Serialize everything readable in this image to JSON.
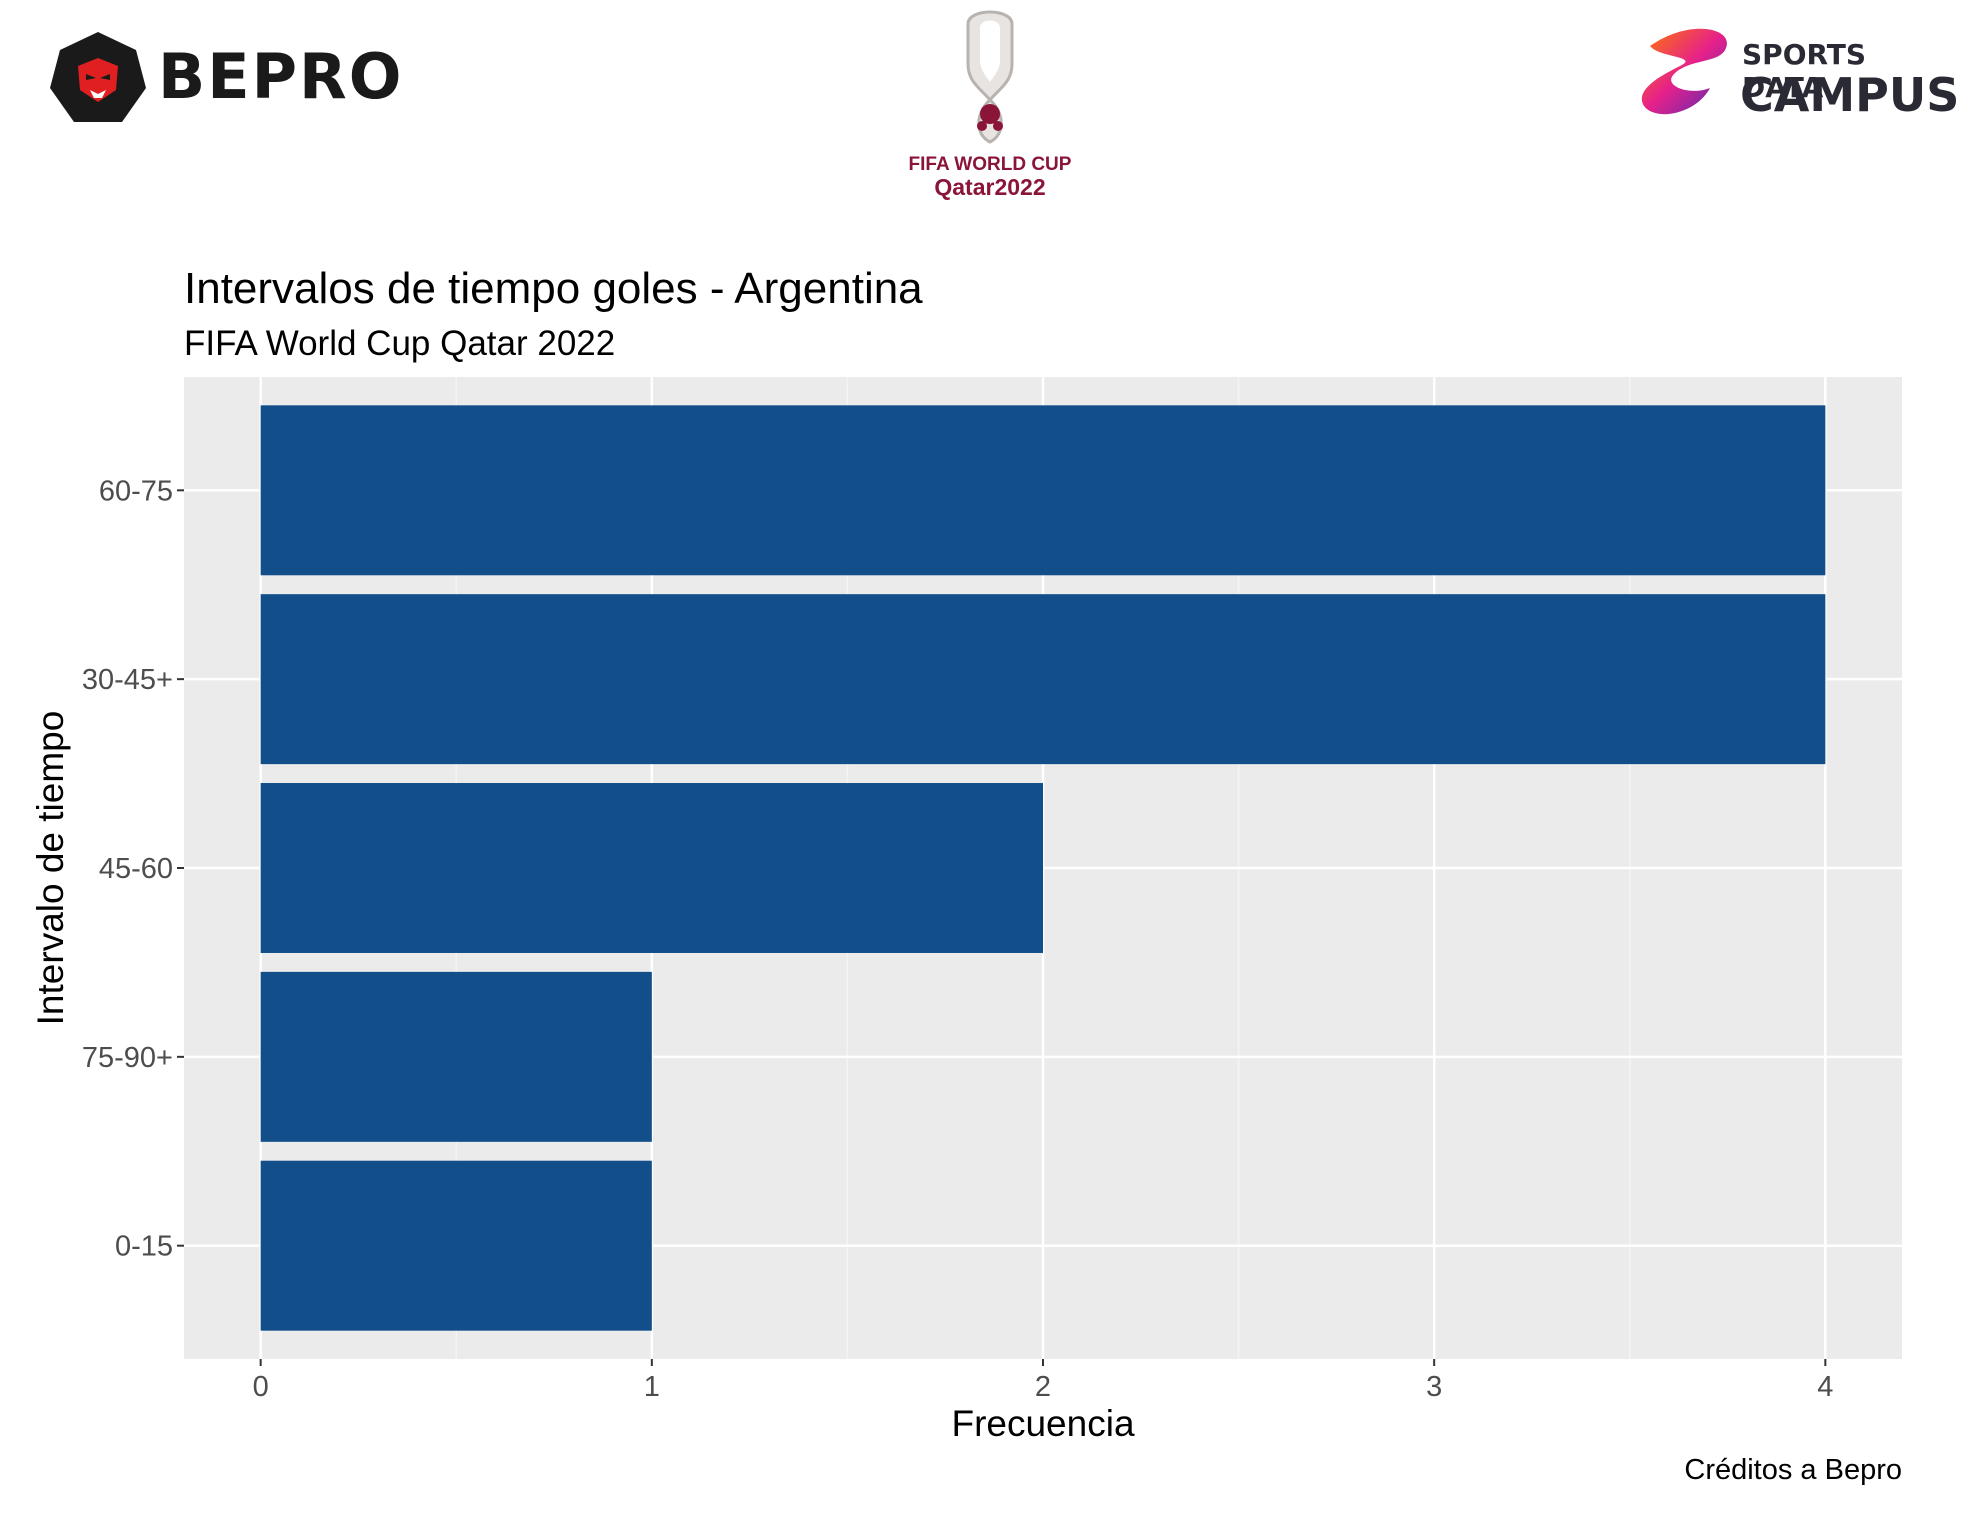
{
  "logos": {
    "bepro": "BEPRO",
    "world_cup_line1": "FIFA WORLD CUP",
    "world_cup_line2": "Qatar2022",
    "sdc_line1": "SPORTS DATA",
    "sdc_line2": "CAMPUS"
  },
  "colors": {
    "bar": "#124f8a",
    "panel": "#ebebeb",
    "grid_major": "#ffffff",
    "grid_minor": "#f4f4f4",
    "tick_text": "#4d4d4d"
  },
  "chart_data": {
    "type": "bar",
    "orientation": "horizontal",
    "title": "Intervalos de tiempo goles - Argentina",
    "subtitle": "FIFA World Cup Qatar 2022",
    "xlabel": "Frecuencia",
    "ylabel": "Intervalo de tiempo",
    "caption": "Créditos a Bepro",
    "categories": [
      "60-75",
      "30-45+",
      "45-60",
      "75-90+",
      "0-15"
    ],
    "values": [
      4,
      4,
      2,
      1,
      1
    ],
    "xlim": [
      -0.196,
      4.196
    ],
    "x_ticks": [
      0,
      1,
      2,
      3,
      4
    ],
    "grid": true,
    "legend": "none"
  }
}
